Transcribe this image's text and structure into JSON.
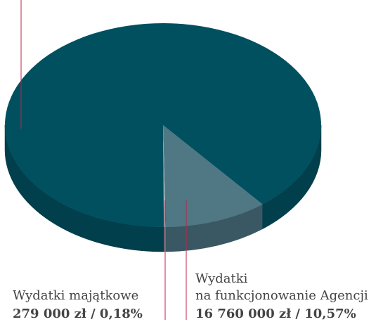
{
  "chart_data": {
    "type": "pie",
    "categories": [
      "Wydatki\nna funkcjonowanie Agencji",
      "Wydatki majątkowe",
      null
    ],
    "values": [
      10.57,
      0.18,
      89.25
    ],
    "value_labels": [
      "16 760 000 zł / 10,57%",
      "279 000 zł / 0,18%",
      null
    ],
    "colors": [
      "#4f7784",
      "#9fb3b9",
      "#00505f"
    ],
    "side_colors": [
      "#3a5863",
      "#7d9097",
      "#003f4b"
    ]
  }
}
